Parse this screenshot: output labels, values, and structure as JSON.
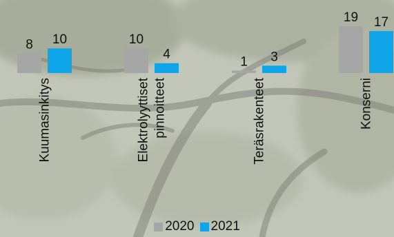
{
  "chart_data": {
    "type": "bar",
    "categories": [
      [
        "Kuumasinkitys"
      ],
      [
        "Elektrolyyttiset",
        "pinnoitteet"
      ],
      [
        "Teräsrakenteet"
      ],
      [
        "Konserni"
      ]
    ],
    "series": [
      {
        "name": "2020",
        "color": "#a6a6a6",
        "values": [
          8,
          10,
          1,
          19
        ]
      },
      {
        "name": "2021",
        "color": "#0ea5e9",
        "values": [
          10,
          4,
          3,
          17
        ]
      }
    ],
    "ylim": [
      0,
      19
    ],
    "legend_position": "bottom",
    "grid": false,
    "background": "photo of tree branches, washed out"
  }
}
